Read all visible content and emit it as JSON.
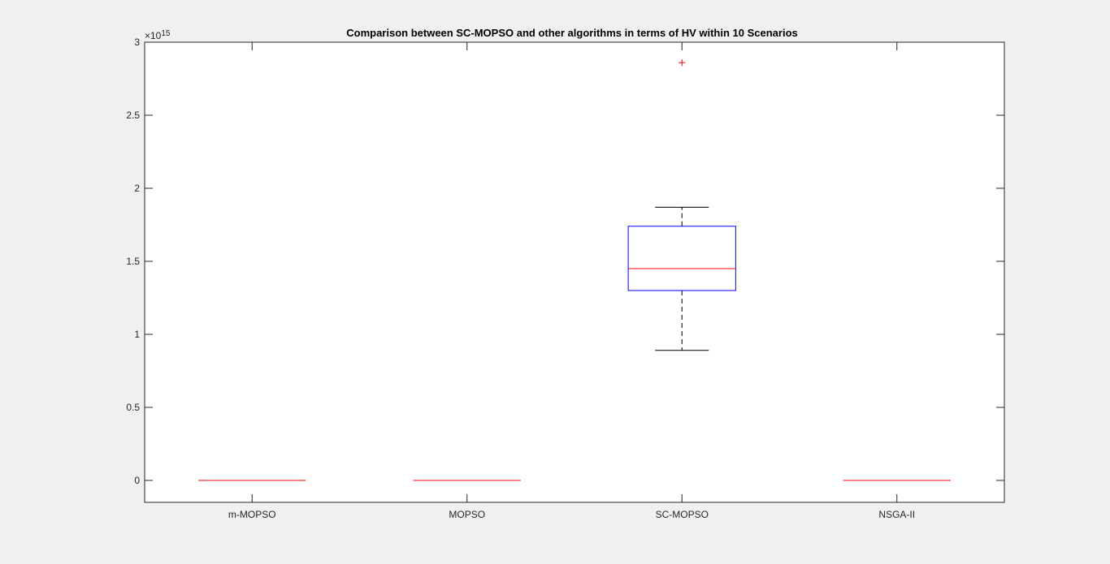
{
  "chart_data": {
    "type": "box",
    "title": "Comparison between SC-MOPSO and other algorithms in terms of HV within 10 Scenarios",
    "xlabel": "",
    "ylabel": "",
    "exponent_label": {
      "base": "×10",
      "power": "15"
    },
    "y_scale_factor": 1000000000000000.0,
    "ylim": [
      -0.15,
      3.0
    ],
    "yticks": [
      0,
      0.5,
      1,
      1.5,
      2,
      2.5,
      3
    ],
    "ytick_labels": [
      "0",
      "0.5",
      "1",
      "1.5",
      "2",
      "2.5",
      "3"
    ],
    "categories": [
      "m-MOPSO",
      "MOPSO",
      "SC-MOPSO",
      "NSGA-II"
    ],
    "boxes": [
      {
        "category": "m-MOPSO",
        "whisker_low": 0,
        "q1": 0,
        "median": 0,
        "q3": 0,
        "whisker_high": 0,
        "outliers": []
      },
      {
        "category": "MOPSO",
        "whisker_low": 0,
        "q1": 0,
        "median": 0,
        "q3": 0,
        "whisker_high": 0,
        "outliers": []
      },
      {
        "category": "SC-MOPSO",
        "whisker_low": 0.89,
        "q1": 1.3,
        "median": 1.45,
        "q3": 1.74,
        "whisker_high": 1.87,
        "outliers": [
          2.86
        ]
      },
      {
        "category": "NSGA-II",
        "whisker_low": 0,
        "q1": 0,
        "median": 0,
        "q3": 0,
        "whisker_high": 0,
        "outliers": []
      }
    ],
    "grid": false,
    "colors": {
      "box": "#0000ff",
      "median": "#ff0000",
      "whisker": "#000000",
      "outlier": "#ff0000",
      "axes": "#262626"
    }
  }
}
